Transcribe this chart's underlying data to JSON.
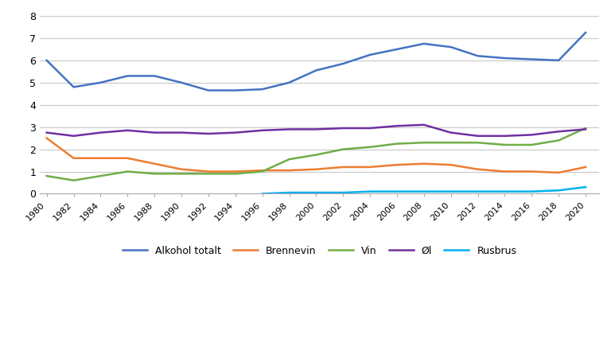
{
  "years": [
    1980,
    1982,
    1984,
    1986,
    1988,
    1990,
    1992,
    1994,
    1996,
    1998,
    2000,
    2002,
    2004,
    2006,
    2008,
    2010,
    2012,
    2014,
    2016,
    2018,
    2020
  ],
  "alkohol_totalt": [
    6.0,
    4.8,
    5.0,
    5.3,
    5.3,
    5.0,
    4.65,
    4.65,
    4.7,
    5.0,
    5.55,
    5.85,
    6.25,
    6.5,
    6.75,
    6.6,
    6.2,
    6.1,
    6.05,
    6.0,
    7.25
  ],
  "brennevin": [
    2.5,
    1.6,
    1.6,
    1.6,
    1.35,
    1.1,
    1.0,
    1.0,
    1.05,
    1.05,
    1.1,
    1.2,
    1.2,
    1.3,
    1.35,
    1.3,
    1.1,
    1.0,
    1.0,
    0.95,
    1.2
  ],
  "vin": [
    0.8,
    0.6,
    0.8,
    1.0,
    0.9,
    0.9,
    0.9,
    0.9,
    1.0,
    1.55,
    1.75,
    2.0,
    2.1,
    2.25,
    2.3,
    2.3,
    2.3,
    2.2,
    2.2,
    2.4,
    2.95
  ],
  "ol": [
    2.75,
    2.6,
    2.75,
    2.85,
    2.75,
    2.75,
    2.7,
    2.75,
    2.85,
    2.9,
    2.9,
    2.95,
    2.95,
    3.05,
    3.1,
    2.75,
    2.6,
    2.6,
    2.65,
    2.8,
    2.9
  ],
  "rusbrus": [
    null,
    null,
    null,
    null,
    null,
    null,
    null,
    null,
    0.0,
    0.05,
    0.05,
    0.05,
    0.1,
    0.1,
    0.1,
    0.1,
    0.1,
    0.1,
    0.1,
    0.15,
    0.3
  ],
  "colors": {
    "alkohol_totalt": "#4472C4",
    "brennevin": "#ED7D31",
    "vin": "#70AD47",
    "ol": "#7030A0",
    "rusbrus": "#00B0F0"
  },
  "legend_labels": [
    "Alkohol totalt",
    "Brennevin",
    "Vin",
    "Øl",
    "Rusbrus"
  ],
  "ylim": [
    0,
    8
  ],
  "yticks": [
    0,
    1,
    2,
    3,
    4,
    5,
    6,
    7,
    8
  ],
  "xtick_years": [
    1980,
    1982,
    1984,
    1986,
    1988,
    1990,
    1992,
    1994,
    1996,
    1998,
    2000,
    2002,
    2004,
    2006,
    2008,
    2010,
    2012,
    2014,
    2016,
    2018,
    2020
  ],
  "background_color": "#FFFFFF",
  "grid_color": "#C8C8C8"
}
